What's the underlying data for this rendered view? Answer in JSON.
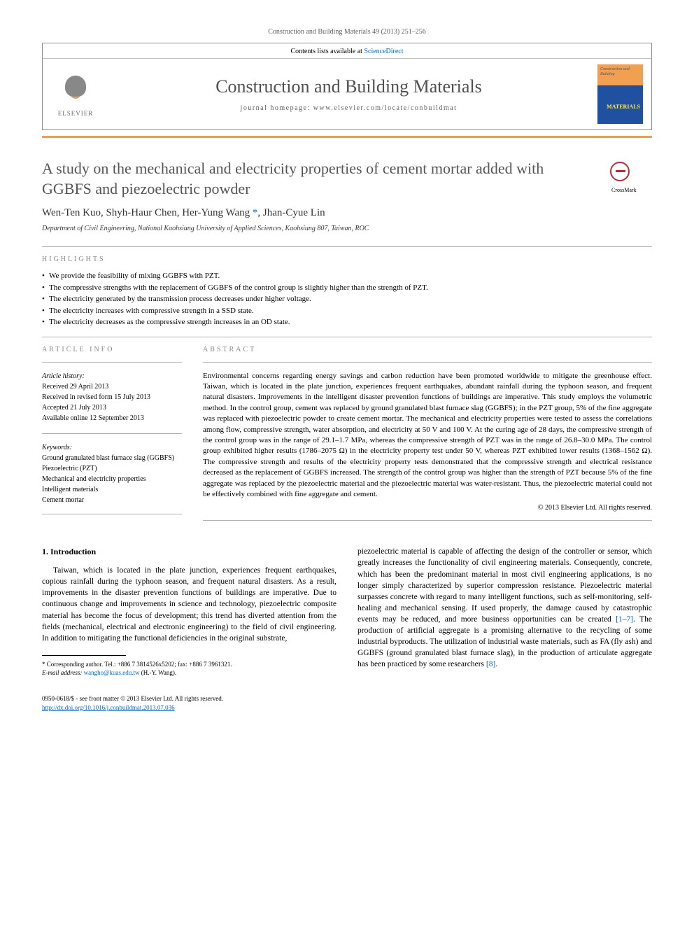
{
  "citation": "Construction and Building Materials 49 (2013) 251–256",
  "contents_line": "Contents lists available at ",
  "sciencedirect": "ScienceDirect",
  "journal_title": "Construction and Building Materials",
  "homepage_label": "journal homepage: www.elsevier.com/locate/conbuildmat",
  "elsevier_label": "ELSEVIER",
  "cover_top": "Construction and Building",
  "cover_bottom": "MATERIALS",
  "crossmark_label": "CrossMark",
  "article": {
    "title": "A study on the mechanical and electricity properties of cement mortar added with GGBFS and piezoelectric powder",
    "authors": "Wen-Ten Kuo, Shyh-Haur Chen, Her-Yung Wang",
    "authors_suffix": ", Jhan-Cyue Lin",
    "corr_mark": "*",
    "affiliation": "Department of Civil Engineering, National Kaohsiung University of Applied Sciences, Kaohsiung 807, Taiwan, ROC"
  },
  "highlights": {
    "label": "HIGHLIGHTS",
    "items": [
      "We provide the feasibility of mixing GGBFS with PZT.",
      "The compressive strengths with the replacement of GGBFS of the control group is slightly higher than the strength of PZT.",
      "The electricity generated by the transmission process decreases under higher voltage.",
      "The electricity increases with compressive strength in a SSD state.",
      "The electricity decreases as the compressive strength increases in an OD state."
    ]
  },
  "article_info": {
    "label": "ARTICLE INFO",
    "history_label": "Article history:",
    "received": "Received 29 April 2013",
    "revised": "Received in revised form 15 July 2013",
    "accepted": "Accepted 21 July 2013",
    "online": "Available online 12 September 2013",
    "keywords_label": "Keywords:",
    "keywords": [
      "Ground granulated blast furnace slag (GGBFS)",
      "Piezoelectric (PZT)",
      "Mechanical and electricity properties",
      "Intelligent materials",
      "Cement mortar"
    ]
  },
  "abstract": {
    "label": "ABSTRACT",
    "text": "Environmental concerns regarding energy savings and carbon reduction have been promoted worldwide to mitigate the greenhouse effect. Taiwan, which is located in the plate junction, experiences frequent earthquakes, abundant rainfall during the typhoon season, and frequent natural disasters. Improvements in the intelligent disaster prevention functions of buildings are imperative. This study employs the volumetric method. In the control group, cement was replaced by ground granulated blast furnace slag (GGBFS); in the PZT group, 5% of the fine aggregate was replaced with piezoelectric powder to create cement mortar. The mechanical and electricity properties were tested to assess the correlations among flow, compressive strength, water absorption, and electricity at 50 V and 100 V. At the curing age of 28 days, the compressive strength of the control group was in the range of 29.1–1.7 MPa, whereas the compressive strength of PZT was in the range of 26.8–30.0 MPa. The control group exhibited higher results (1786–2075 Ω) in the electricity property test under 50 V, whereas PZT exhibited lower results (1368–1562 Ω). The compressive strength and results of the electricity property tests demonstrated that the compressive strength and electrical resistance decreased as the replacement of GGBFS increased. The strength of the control group was higher than the strength of PZT because 5% of the fine aggregate was replaced by the piezoelectric material and the piezoelectric material was water-resistant. Thus, the piezoelectric material could not be effectively combined with fine aggregate and cement.",
    "copyright": "© 2013 Elsevier Ltd. All rights reserved."
  },
  "intro": {
    "heading": "1. Introduction",
    "para_left": "Taiwan, which is located in the plate junction, experiences frequent earthquakes, copious rainfall during the typhoon season, and frequent natural disasters. As a result, improvements in the disaster prevention functions of buildings are imperative. Due to continuous change and improvements in science and technology, piezoelectric composite material has become the focus of development; this trend has diverted attention from the fields (mechanical, electrical and electronic engineering) to the field of civil engineering. In addition to mitigating the functional deficiencies in the original substrate,",
    "para_right_1": "piezoelectric material is capable of affecting the design of the controller or sensor, which greatly increases the functionality of civil engineering materials. Consequently, concrete, which has been the predominant material in most civil engineering applications, is no longer simply characterized by superior compression resistance. Piezoelectric material surpasses concrete with regard to many intelligent functions, such as self-monitoring, self-healing and mechanical sensing. If used properly, the damage caused by catastrophic events may be reduced, and more business opportunities can be created ",
    "ref_1": "[1–7]",
    "para_right_2": ". The production of artificial aggregate is a promising alternative to the recycling of some industrial byproducts. The utilization of industrial waste materials, such as FA (fly ash) and GGBFS (ground granulated blast furnace slag), in the production of articulate aggregate has been practiced by some researchers ",
    "ref_2": "[8]",
    "para_right_3": "."
  },
  "footnote": {
    "corr_label": "* Corresponding author. Tel.: +886 7 3814526x5202; fax: +886 7 3961321.",
    "email_label": "E-mail address: ",
    "email": "wangho@kuas.edu.tw",
    "email_suffix": " (H.-Y. Wang)."
  },
  "footer": {
    "line1": "0950-0618/$ - see front matter © 2013 Elsevier Ltd. All rights reserved.",
    "doi": "http://dx.doi.org/10.1016/j.conbuildmat.2013.07.036"
  },
  "colors": {
    "accent_orange": "#e8a050",
    "link_blue": "#0066cc",
    "text_gray": "#555555"
  }
}
